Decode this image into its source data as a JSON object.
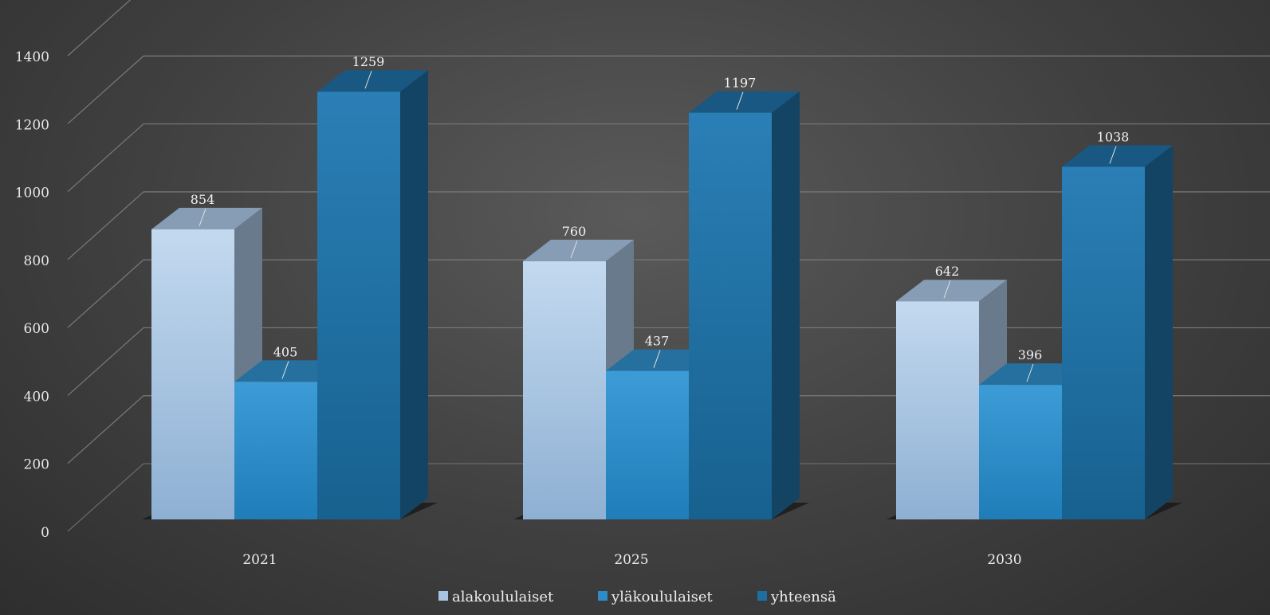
{
  "chart_data": {
    "type": "bar",
    "categories": [
      "2021",
      "2025",
      "2030"
    ],
    "series": [
      {
        "name": "alakoululaiset",
        "values": [
          854,
          760,
          642
        ],
        "color": "#a7c4e2"
      },
      {
        "name": "yläkoululaiset",
        "values": [
          405,
          437,
          396
        ],
        "color": "#2e8cc6"
      },
      {
        "name": "yhteensä",
        "values": [
          1259,
          1197,
          1038
        ],
        "color": "#1f6ea2"
      }
    ],
    "ylim": [
      0,
      1400
    ],
    "yticks": [
      "0",
      "200",
      "400",
      "600",
      "800",
      "1000",
      "1200",
      "1400"
    ],
    "title": "",
    "xlabel": "",
    "ylabel": "",
    "grid": true,
    "legend_position": "bottom",
    "style": "3d-clustered-column"
  }
}
